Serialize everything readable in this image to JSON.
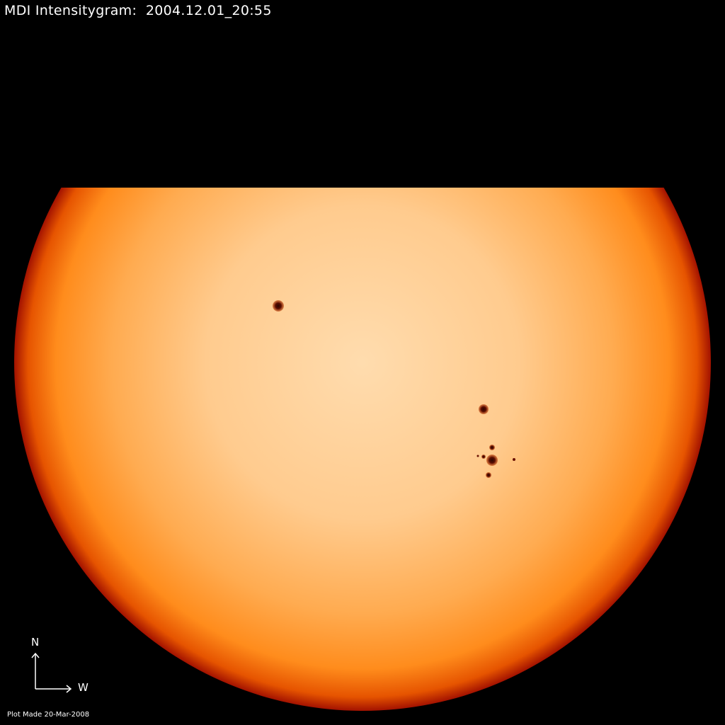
{
  "header": {
    "title": "MDI Intensitygram:  2004.12.01_20:55"
  },
  "orientation": {
    "north_label": "N",
    "west_label": "W",
    "icon": "compass-arrows-icon"
  },
  "footer": {
    "plot_made": "Plot Made 20-Mar-2008"
  },
  "colors": {
    "background": "#000000",
    "disk_center": "#ffdcae",
    "disk_mid": "#ffa23c",
    "disk_limb": "#e65400",
    "disk_edge": "#a31200",
    "sunspot": "#5a0c00"
  }
}
